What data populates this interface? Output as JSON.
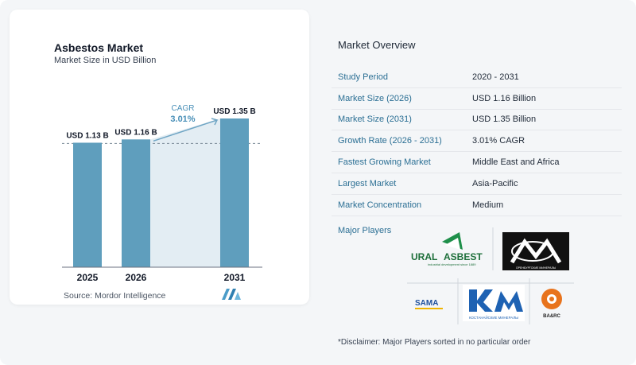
{
  "chart": {
    "title": "Asbestos Market",
    "subtitle": "Market Size in USD Billion",
    "source": "Source:  Mordor Intelligence",
    "cagr_label": "CAGR",
    "cagr_value": "3.01%"
  },
  "chart_data": {
    "type": "bar",
    "categories": [
      "2025",
      "2026",
      "2031"
    ],
    "values": [
      1.13,
      1.16,
      1.35
    ],
    "data_labels": [
      "USD 1.13 B",
      "USD 1.16 B",
      "USD 1.35 B"
    ],
    "ylim": [
      0,
      1.35
    ],
    "grid": false,
    "colors": {
      "bar": "#5f9ebd",
      "band": "#e3edf3",
      "arrow": "#6fa5c4",
      "baseline": "#6b7280"
    }
  },
  "overview": {
    "title": "Market Overview",
    "rows": [
      {
        "label": "Study Period",
        "value": "2020 - 2031"
      },
      {
        "label": "Market Size (2026)",
        "value": "USD 1.16 Billion"
      },
      {
        "label": "Market Size (2031)",
        "value": "USD 1.35 Billion"
      },
      {
        "label": "Growth Rate (2026 - 2031)",
        "value": "3.01% CAGR"
      },
      {
        "label": "Fastest Growing Market",
        "value": "Middle East and Africa"
      },
      {
        "label": "Largest Market",
        "value": "Asia-Pacific"
      },
      {
        "label": "Market Concentration",
        "value": "Medium"
      }
    ]
  },
  "players": {
    "label": "Major Players",
    "logos": [
      {
        "name": "ural-asbest-logo",
        "text": "URAL",
        "text2": "ASBEST",
        "tagline": "industrial development since 1889"
      },
      {
        "name": "orenburg-minerals-logo",
        "text": "ОРЕНБУРГСКИЕ МИНЕРАЛЫ"
      },
      {
        "name": "sama-logo",
        "text": "SAMA"
      },
      {
        "name": "kostanay-minerals-logo",
        "text": "КОСТАНАЙСКИЕ МИНЕРАЛЫ"
      },
      {
        "name": "baarc-logo",
        "text": "BA&RC"
      }
    ]
  },
  "disclaimer": "*Disclaimer: Major Players sorted in no particular order"
}
